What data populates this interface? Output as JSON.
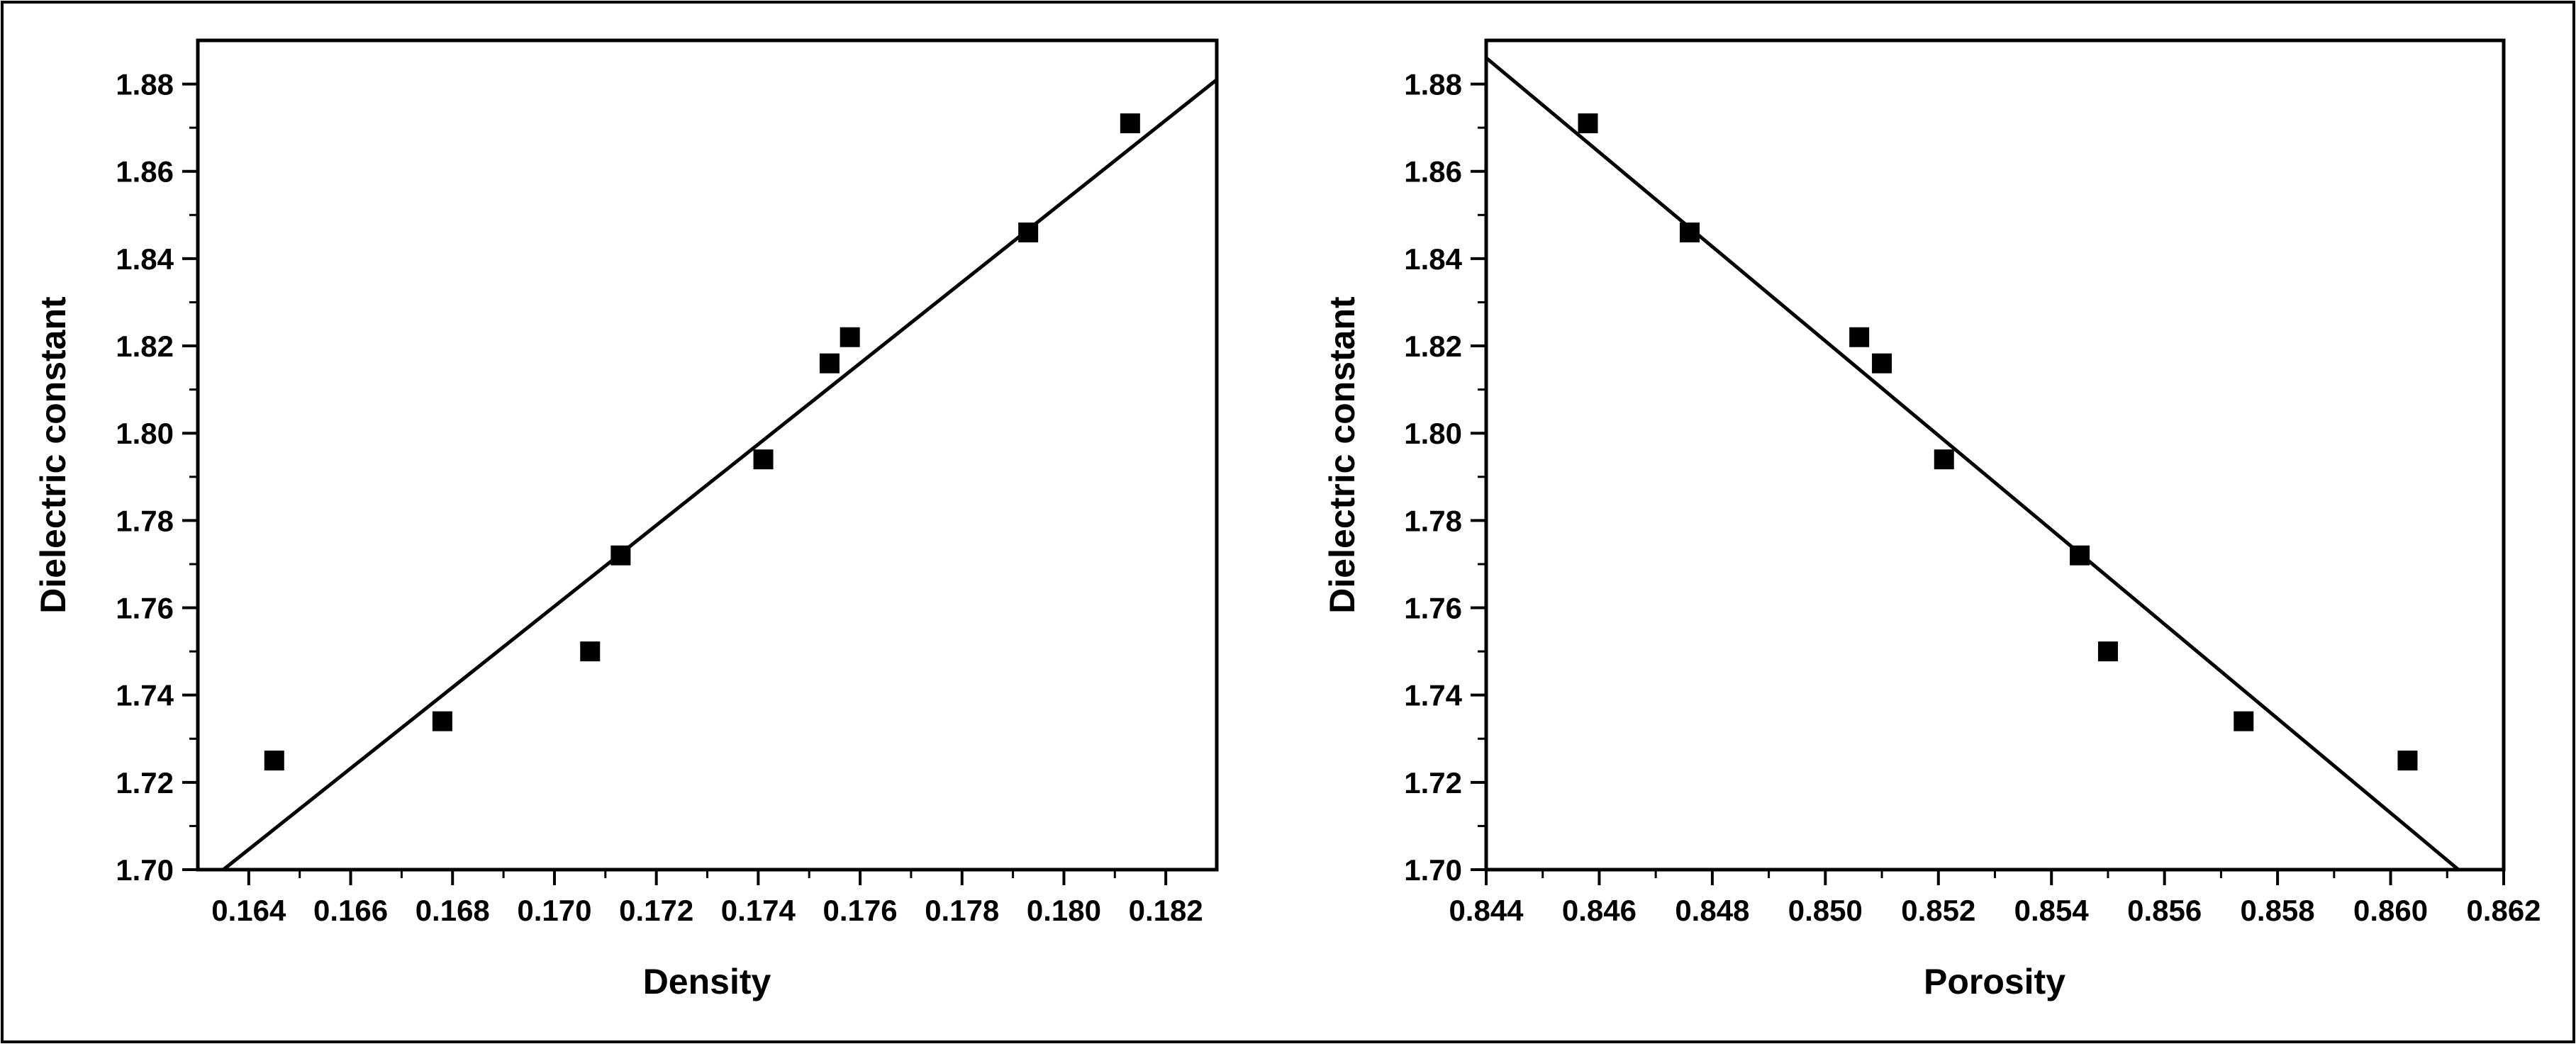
{
  "chart_data": [
    {
      "type": "scatter",
      "title": "",
      "xlabel": "Density",
      "ylabel": "Dielectric constant",
      "xlim": [
        0.163,
        0.183
      ],
      "ylim": [
        1.7,
        1.89
      ],
      "xticks": [
        0.164,
        0.166,
        0.168,
        0.17,
        0.172,
        0.174,
        0.176,
        0.178,
        0.18,
        0.182
      ],
      "xtick_labels": [
        "0.164",
        "0.166",
        "0.168",
        "0.170",
        "0.172",
        "0.174",
        "0.176",
        "0.178",
        "0.180",
        "0.182"
      ],
      "yticks": [
        1.7,
        1.72,
        1.74,
        1.76,
        1.78,
        1.8,
        1.82,
        1.84,
        1.86,
        1.88
      ],
      "ytick_labels": [
        "1.70",
        "1.72",
        "1.74",
        "1.76",
        "1.78",
        "1.80",
        "1.82",
        "1.84",
        "1.86",
        "1.88"
      ],
      "points": [
        {
          "x": 0.1645,
          "y": 1.725
        },
        {
          "x": 0.1678,
          "y": 1.734
        },
        {
          "x": 0.1707,
          "y": 1.75
        },
        {
          "x": 0.1713,
          "y": 1.772
        },
        {
          "x": 0.1741,
          "y": 1.794
        },
        {
          "x": 0.1754,
          "y": 1.816
        },
        {
          "x": 0.1758,
          "y": 1.822
        },
        {
          "x": 0.1793,
          "y": 1.846
        },
        {
          "x": 0.1813,
          "y": 1.871
        }
      ],
      "fit_line": [
        {
          "x": 0.1635,
          "y": 1.7
        },
        {
          "x": 0.183,
          "y": 1.881
        }
      ],
      "grid": false,
      "legend": "none",
      "marker_color": "#000000"
    },
    {
      "type": "scatter",
      "title": "",
      "xlabel": "Porosity",
      "ylabel": "Dielectric constant",
      "xlim": [
        0.844,
        0.862
      ],
      "ylim": [
        1.7,
        1.89
      ],
      "xticks": [
        0.844,
        0.846,
        0.848,
        0.85,
        0.852,
        0.854,
        0.856,
        0.858,
        0.86,
        0.862
      ],
      "xtick_labels": [
        "0.844",
        "0.846",
        "0.848",
        "0.850",
        "0.852",
        "0.854",
        "0.856",
        "0.858",
        "0.860",
        "0.862"
      ],
      "yticks": [
        1.7,
        1.72,
        1.74,
        1.76,
        1.78,
        1.8,
        1.82,
        1.84,
        1.86,
        1.88
      ],
      "ytick_labels": [
        "1.70",
        "1.72",
        "1.74",
        "1.76",
        "1.78",
        "1.80",
        "1.82",
        "1.84",
        "1.86",
        "1.88"
      ],
      "points": [
        {
          "x": 0.8458,
          "y": 1.871
        },
        {
          "x": 0.8476,
          "y": 1.846
        },
        {
          "x": 0.8506,
          "y": 1.822
        },
        {
          "x": 0.851,
          "y": 1.816
        },
        {
          "x": 0.8521,
          "y": 1.794
        },
        {
          "x": 0.8545,
          "y": 1.772
        },
        {
          "x": 0.855,
          "y": 1.75
        },
        {
          "x": 0.8574,
          "y": 1.734
        },
        {
          "x": 0.8603,
          "y": 1.725
        }
      ],
      "fit_line": [
        {
          "x": 0.844,
          "y": 1.886
        },
        {
          "x": 0.8612,
          "y": 1.7
        }
      ],
      "grid": false,
      "legend": "none",
      "marker_color": "#000000"
    }
  ]
}
